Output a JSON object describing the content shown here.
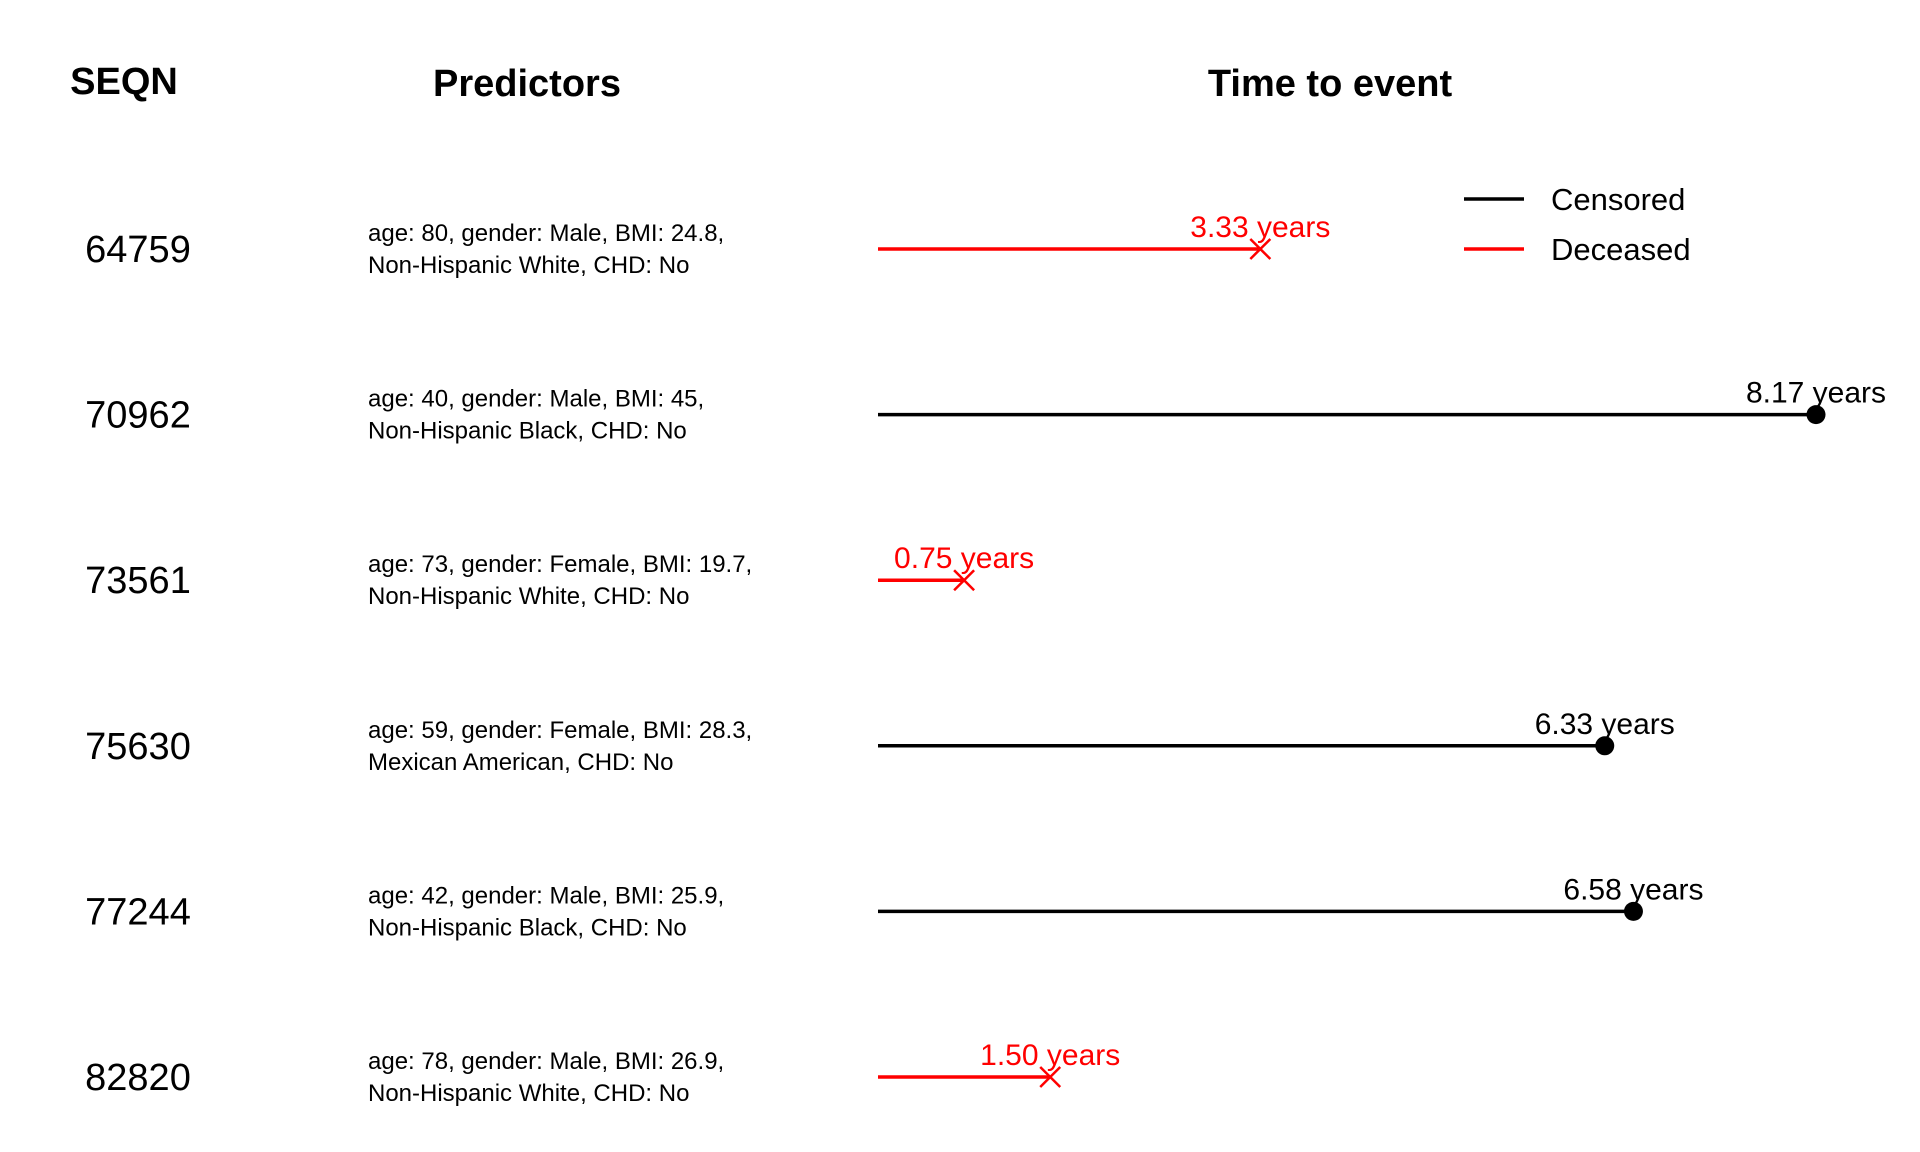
{
  "headers": {
    "seqn": "SEQN",
    "predictors": "Predictors",
    "time": "Time to event"
  },
  "legend": {
    "censored": "Censored",
    "deceased": "Deceased"
  },
  "colors": {
    "censored": "#000000",
    "deceased": "#ff0000"
  },
  "chart_data": {
    "type": "timeline",
    "title": "Time to event",
    "legend_position": "top-right",
    "grid": false,
    "x_range": [
      0,
      8.17
    ],
    "unit": "years",
    "subjects": [
      {
        "seqn": "64759",
        "predictor_line1": "age: 80, gender: Male, BMI: 24.8,",
        "predictor_line2": "Non-Hispanic White, CHD: No",
        "time": 3.33,
        "status": "deceased",
        "label": "3.33 years"
      },
      {
        "seqn": "70962",
        "predictor_line1": "age: 40, gender: Male, BMI: 45,",
        "predictor_line2": "Non-Hispanic Black, CHD: No",
        "time": 8.17,
        "status": "censored",
        "label": "8.17 years"
      },
      {
        "seqn": "73561",
        "predictor_line1": "age: 73, gender: Female, BMI: 19.7,",
        "predictor_line2": "Non-Hispanic White, CHD: No",
        "time": 0.75,
        "status": "deceased",
        "label": "0.75 years"
      },
      {
        "seqn": "75630",
        "predictor_line1": "age: 59, gender: Female, BMI: 28.3,",
        "predictor_line2": "Mexican American, CHD: No",
        "time": 6.33,
        "status": "censored",
        "label": "6.33 years"
      },
      {
        "seqn": "77244",
        "predictor_line1": "age: 42, gender: Male, BMI: 25.9,",
        "predictor_line2": "Non-Hispanic Black, CHD: No",
        "time": 6.58,
        "status": "censored",
        "label": "6.58 years"
      },
      {
        "seqn": "82820",
        "predictor_line1": "age: 78, gender: Male, BMI: 26.9,",
        "predictor_line2": "Non-Hispanic White, CHD: No",
        "time": 1.5,
        "status": "deceased",
        "label": "1.50 years"
      }
    ]
  }
}
